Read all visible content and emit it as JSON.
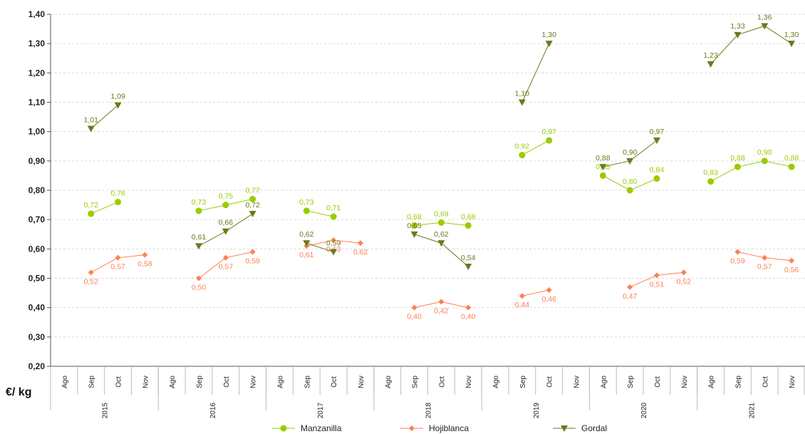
{
  "chart_data": {
    "type": "line",
    "ylabel": "€/ kg",
    "ylim": [
      0.2,
      1.4
    ],
    "yticks": [
      "0,20",
      "0,30",
      "0,40",
      "0,50",
      "0,60",
      "0,70",
      "0,80",
      "0,90",
      "1,00",
      "1,10",
      "1,20",
      "1,30",
      "1,40"
    ],
    "grid": "horizontal dashed",
    "legend_position": "bottom",
    "years": [
      "2015",
      "2016",
      "2017",
      "2018",
      "2019",
      "2020",
      "2021"
    ],
    "months": [
      "Ago",
      "Sep",
      "Oct",
      "Nov"
    ],
    "categories": [
      "Ago 2015",
      "Sep 2015",
      "Oct 2015",
      "Nov 2015",
      "Ago 2016",
      "Sep 2016",
      "Oct 2016",
      "Nov 2016",
      "Ago 2017",
      "Sep 2017",
      "Oct 2017",
      "Nov 2017",
      "Ago 2018",
      "Sep 2018",
      "Oct 2018",
      "Nov 2018",
      "Ago 2019",
      "Sep 2019",
      "Oct 2019",
      "Nov 2019",
      "Ago 2020",
      "Sep 2020",
      "Oct 2020",
      "Nov 2020",
      "Ago 2021",
      "Sep 2021",
      "Oct 2021",
      "Nov 2021"
    ],
    "series": [
      {
        "name": "Manzanilla",
        "color": "#99cc00",
        "values": [
          null,
          0.72,
          0.76,
          null,
          null,
          0.73,
          0.75,
          0.77,
          null,
          0.73,
          0.71,
          null,
          null,
          0.68,
          0.69,
          0.68,
          null,
          0.92,
          0.97,
          null,
          0.85,
          0.8,
          0.84,
          null,
          0.83,
          0.88,
          0.9,
          0.88
        ],
        "labels": [
          null,
          "0,72",
          "0,76",
          null,
          null,
          "0,73",
          "0,75",
          "0,77",
          null,
          "0,73",
          "0,71",
          null,
          null,
          "0,68",
          "0,69",
          "0,68",
          null,
          "0,92",
          "0,97",
          null,
          "0,85",
          "0,80",
          "0,84",
          null,
          "0,83",
          "0,88",
          "0,90",
          "0,88"
        ]
      },
      {
        "name": "Hojiblanca",
        "color": "#ff7f50",
        "values": [
          null,
          0.52,
          0.57,
          0.58,
          null,
          0.5,
          0.57,
          0.59,
          null,
          0.61,
          0.63,
          0.62,
          null,
          0.4,
          0.42,
          0.4,
          null,
          0.44,
          0.46,
          null,
          null,
          0.47,
          0.51,
          0.52,
          null,
          0.59,
          0.57,
          0.56
        ],
        "labels": [
          null,
          "0,52",
          "0,57",
          "0,58",
          null,
          "0,50",
          "0,57",
          "0,59",
          null,
          "0,61",
          "0,63",
          "0,62",
          null,
          "0,40",
          "0,42",
          "0,40",
          null,
          "0,44",
          "0,46",
          null,
          null,
          "0,47",
          "0,51",
          "0,52",
          null,
          "0,59",
          "0,57",
          "0,56"
        ]
      },
      {
        "name": "Gordal",
        "color": "#6b7a1e",
        "values": [
          null,
          1.01,
          1.09,
          null,
          null,
          0.61,
          0.66,
          0.72,
          null,
          0.62,
          0.59,
          null,
          null,
          0.65,
          0.62,
          0.54,
          null,
          1.1,
          1.3,
          null,
          0.88,
          0.9,
          0.97,
          null,
          1.23,
          1.33,
          1.36,
          1.3
        ],
        "labels": [
          null,
          "1,01",
          "1,09",
          null,
          null,
          "0,61",
          "0,66",
          "0,72",
          null,
          "0,62",
          "0,59",
          null,
          null,
          "0,65",
          "0,62",
          "0,54",
          null,
          "1,10",
          "1,30",
          null,
          "0,88",
          "0,90",
          "0,97",
          null,
          "1,23",
          "1,33",
          "1,36",
          "1,30"
        ]
      }
    ]
  },
  "colors": {
    "grid": "#d9d9d9",
    "axis": "#555555"
  }
}
